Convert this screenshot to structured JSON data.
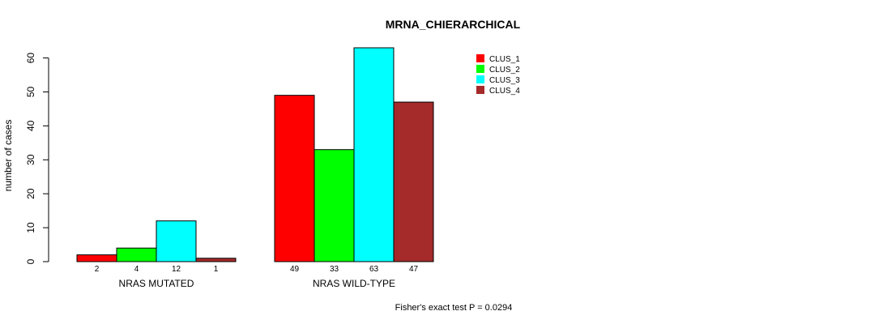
{
  "chart_data": {
    "type": "bar",
    "title": "MRNA_CHIERARCHICAL",
    "xlabel": "",
    "ylabel": "number of cases",
    "ylim": [
      0,
      63
    ],
    "yticks": [
      0,
      10,
      20,
      30,
      40,
      50,
      60
    ],
    "categories": [
      "NRAS MUTATED",
      "NRAS WILD-TYPE"
    ],
    "series": [
      {
        "name": "CLUS_1",
        "color": "#ff0000",
        "values": [
          2,
          49
        ]
      },
      {
        "name": "CLUS_2",
        "color": "#00ff00",
        "values": [
          4,
          33
        ]
      },
      {
        "name": "CLUS_3",
        "color": "#00ffff",
        "values": [
          12,
          63
        ]
      },
      {
        "name": "CLUS_4",
        "color": "#a52a2a",
        "values": [
          1,
          47
        ]
      }
    ],
    "legend_position": "top-right",
    "grid": false,
    "footnote": "Fisher's exact test P = 0.0294"
  }
}
